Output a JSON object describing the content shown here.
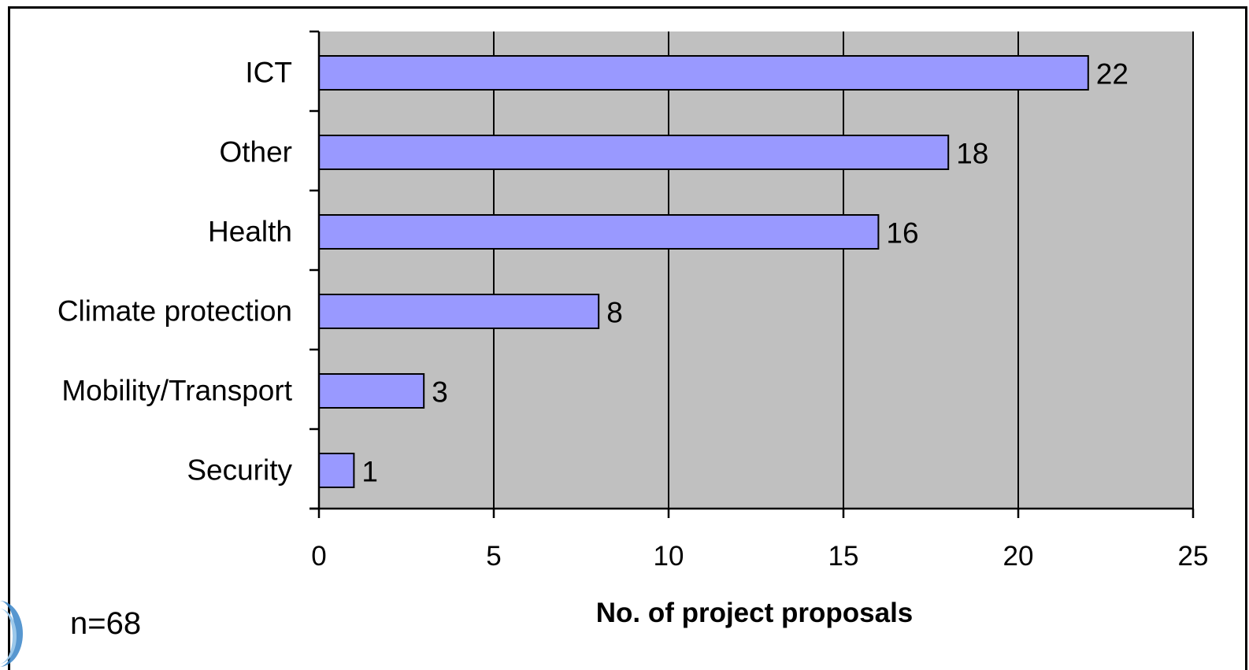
{
  "colors": {
    "plot_background": "#c0c0c0",
    "bar_fill": "#9999ff",
    "bar_stroke": "#000000",
    "gridline": "#000000",
    "deco_accent": "#3a86c8"
  },
  "note": "n=68",
  "chart_data": {
    "type": "bar",
    "orientation": "horizontal",
    "categories": [
      "ICT",
      "Other",
      "Health",
      "Climate protection",
      "Mobility/Transport",
      "Security"
    ],
    "values": [
      22,
      18,
      16,
      8,
      3,
      1
    ],
    "data_labels": [
      "22",
      "18",
      "16",
      "8",
      "3",
      "1"
    ],
    "title": "",
    "xlabel": "No. of project proposals",
    "ylabel": "",
    "xlim": [
      0,
      25
    ],
    "x_ticks": [
      0,
      5,
      10,
      15,
      20,
      25
    ],
    "x_tick_labels": [
      "0",
      "5",
      "10",
      "15",
      "20",
      "25"
    ],
    "grid": "vertical major gridlines",
    "legend": "none"
  }
}
